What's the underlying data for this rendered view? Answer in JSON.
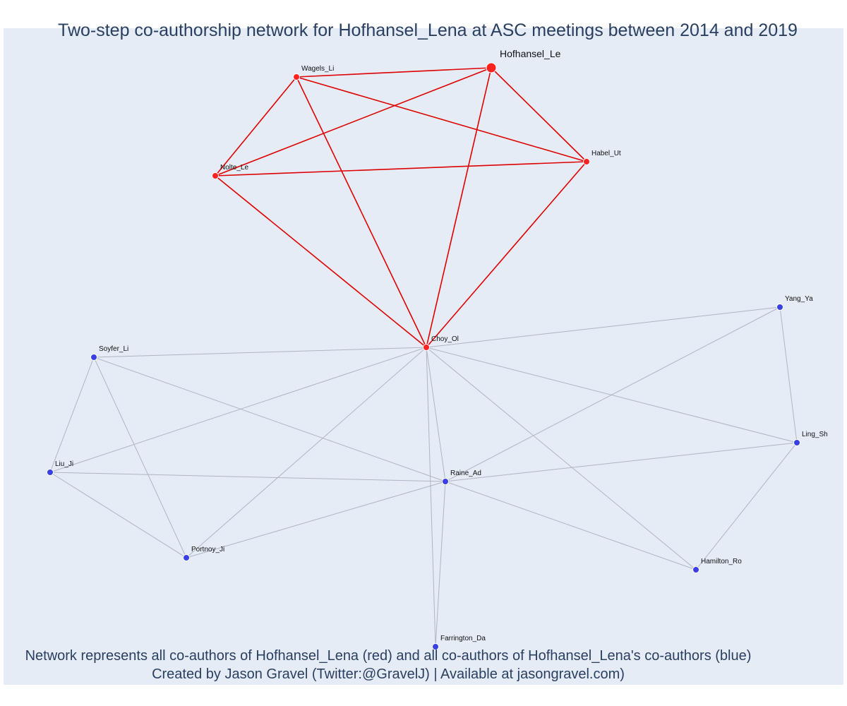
{
  "title": "Two-step co-authorship network for Hofhansel_Lena at ASC meetings between 2014 and 2019",
  "footer": {
    "line1": "Network represents all co-authors of Hofhansel_Lena (red) and all co-authors of Hofhansel_Lena's co-authors (blue)",
    "line2": "Created by Jason Gravel (Twitter:@GravelJ) | Available at jasongravel.com)"
  },
  "colors": {
    "red": "#ff2020",
    "blue": "#3b3fe6",
    "red_edge": "#e00000",
    "grey_edge": "#b0b4c4"
  },
  "nodes": [
    {
      "id": "Hofhansel_Le",
      "group": "focal"
    },
    {
      "id": "Wagels_Li",
      "group": "red"
    },
    {
      "id": "Habel_Ut",
      "group": "red"
    },
    {
      "id": "Nolte_Le",
      "group": "red"
    },
    {
      "id": "Choy_Ol",
      "group": "red"
    },
    {
      "id": "Yang_Ya",
      "group": "blue"
    },
    {
      "id": "Soyfer_Li",
      "group": "blue"
    },
    {
      "id": "Ling_Sh",
      "group": "blue"
    },
    {
      "id": "Liu_Ji",
      "group": "blue"
    },
    {
      "id": "Raine_Ad",
      "group": "blue"
    },
    {
      "id": "Portnoy_Ji",
      "group": "blue"
    },
    {
      "id": "Hamilton_Ro",
      "group": "blue"
    },
    {
      "id": "Farrington_Da",
      "group": "blue"
    }
  ],
  "edges": [
    {
      "source": "Hofhansel_Le",
      "target": "Wagels_Li",
      "type": "red"
    },
    {
      "source": "Hofhansel_Le",
      "target": "Nolte_Le",
      "type": "red"
    },
    {
      "source": "Hofhansel_Le",
      "target": "Habel_Ut",
      "type": "red"
    },
    {
      "source": "Hofhansel_Le",
      "target": "Choy_Ol",
      "type": "red"
    },
    {
      "source": "Wagels_Li",
      "target": "Nolte_Le",
      "type": "red"
    },
    {
      "source": "Wagels_Li",
      "target": "Habel_Ut",
      "type": "red"
    },
    {
      "source": "Wagels_Li",
      "target": "Choy_Ol",
      "type": "red"
    },
    {
      "source": "Nolte_Le",
      "target": "Habel_Ut",
      "type": "red"
    },
    {
      "source": "Nolte_Le",
      "target": "Choy_Ol",
      "type": "red"
    },
    {
      "source": "Habel_Ut",
      "target": "Choy_Ol",
      "type": "red"
    },
    {
      "source": "Choy_Ol",
      "target": "Yang_Ya",
      "type": "grey"
    },
    {
      "source": "Choy_Ol",
      "target": "Soyfer_Li",
      "type": "grey"
    },
    {
      "source": "Choy_Ol",
      "target": "Ling_Sh",
      "type": "grey"
    },
    {
      "source": "Choy_Ol",
      "target": "Liu_Ji",
      "type": "grey"
    },
    {
      "source": "Choy_Ol",
      "target": "Raine_Ad",
      "type": "grey"
    },
    {
      "source": "Choy_Ol",
      "target": "Portnoy_Ji",
      "type": "grey"
    },
    {
      "source": "Choy_Ol",
      "target": "Hamilton_Ro",
      "type": "grey"
    },
    {
      "source": "Choy_Ol",
      "target": "Farrington_Da",
      "type": "grey"
    },
    {
      "source": "Yang_Ya",
      "target": "Ling_Sh",
      "type": "grey"
    },
    {
      "source": "Yang_Ya",
      "target": "Raine_Ad",
      "type": "grey"
    },
    {
      "source": "Soyfer_Li",
      "target": "Liu_Ji",
      "type": "grey"
    },
    {
      "source": "Soyfer_Li",
      "target": "Portnoy_Ji",
      "type": "grey"
    },
    {
      "source": "Soyfer_Li",
      "target": "Raine_Ad",
      "type": "grey"
    },
    {
      "source": "Liu_Ji",
      "target": "Raine_Ad",
      "type": "grey"
    },
    {
      "source": "Liu_Ji",
      "target": "Portnoy_Ji",
      "type": "grey"
    },
    {
      "source": "Portnoy_Ji",
      "target": "Raine_Ad",
      "type": "grey"
    },
    {
      "source": "Raine_Ad",
      "target": "Ling_Sh",
      "type": "grey"
    },
    {
      "source": "Raine_Ad",
      "target": "Hamilton_Ro",
      "type": "grey"
    },
    {
      "source": "Raine_Ad",
      "target": "Farrington_Da",
      "type": "grey"
    },
    {
      "source": "Ling_Sh",
      "target": "Hamilton_Ro",
      "type": "grey"
    }
  ]
}
